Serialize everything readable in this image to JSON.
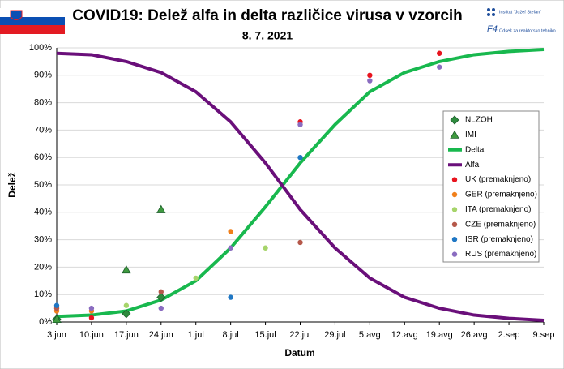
{
  "chart_data": {
    "type": "scatter",
    "title": "COVID19: Delež alfa in delta različice virusa v vzorcih",
    "subtitle": "8. 7. 2021",
    "annotations": [
      "Institut \"Jožef Stefan\"",
      "Odsek za reaktorsko tehniko"
    ],
    "x_label": "Datum",
    "y_label": "Delež",
    "xlim": [
      154,
      252
    ],
    "xticks": [
      {
        "value": 154,
        "label": "3.jun"
      },
      {
        "value": 161,
        "label": "10.jun"
      },
      {
        "value": 168,
        "label": "17.jun"
      },
      {
        "value": 175,
        "label": "24.jun"
      },
      {
        "value": 182,
        "label": "1.jul"
      },
      {
        "value": 189,
        "label": "8.jul"
      },
      {
        "value": 196,
        "label": "15.jul"
      },
      {
        "value": 203,
        "label": "22.jul"
      },
      {
        "value": 210,
        "label": "29.jul"
      },
      {
        "value": 217,
        "label": "5.avg"
      },
      {
        "value": 224,
        "label": "12.avg"
      },
      {
        "value": 231,
        "label": "19.avg"
      },
      {
        "value": 238,
        "label": "26.avg"
      },
      {
        "value": 245,
        "label": "2.sep"
      },
      {
        "value": 252,
        "label": "9.sep"
      }
    ],
    "ylim": [
      0,
      100
    ],
    "yticks": [
      {
        "value": 0,
        "label": "0%"
      },
      {
        "value": 10,
        "label": "10%"
      },
      {
        "value": 20,
        "label": "20%"
      },
      {
        "value": 30,
        "label": "30%"
      },
      {
        "value": 40,
        "label": "40%"
      },
      {
        "value": 50,
        "label": "50%"
      },
      {
        "value": 60,
        "label": "60%"
      },
      {
        "value": 70,
        "label": "70%"
      },
      {
        "value": 80,
        "label": "80%"
      },
      {
        "value": 90,
        "label": "90%"
      },
      {
        "value": 100,
        "label": "100%"
      }
    ],
    "grid": true,
    "series": [
      {
        "name": "NLZOH",
        "color": "#2e8b3e",
        "marker": "diamond",
        "x": [
          154,
          168,
          175
        ],
        "values": [
          1,
          3,
          9
        ]
      },
      {
        "name": "IMI",
        "color": "#3f9a3f",
        "marker": "triangle",
        "x": [
          154,
          168,
          175
        ],
        "values": [
          1,
          19,
          41
        ]
      },
      {
        "name": "Delta",
        "color": "#18b84e",
        "marker": "line",
        "x": [
          154,
          161,
          168,
          175,
          182,
          189,
          196,
          203,
          210,
          217,
          224,
          231,
          238,
          245,
          252
        ],
        "values": [
          2,
          2.5,
          4,
          8,
          15,
          27,
          42,
          58,
          72,
          84,
          91,
          95,
          97.5,
          98.7,
          99.4
        ]
      },
      {
        "name": "Alfa",
        "color": "#6a0f7a",
        "marker": "line",
        "x": [
          154,
          161,
          168,
          175,
          182,
          189,
          196,
          203,
          210,
          217,
          224,
          231,
          238,
          245,
          252
        ],
        "values": [
          98,
          97.5,
          95,
          91,
          84,
          73,
          58,
          41,
          27,
          16,
          9,
          5,
          2.5,
          1.3,
          0.6
        ]
      },
      {
        "name": "UK (premaknjeno)",
        "color": "#e8141e",
        "marker": "circle",
        "x": [
          161,
          203,
          217,
          231
        ],
        "values": [
          1.5,
          73,
          90,
          98
        ]
      },
      {
        "name": "GER (premaknjeno)",
        "color": "#f07f1a",
        "marker": "circle",
        "x": [
          154,
          161,
          189
        ],
        "values": [
          4,
          4,
          33
        ]
      },
      {
        "name": "ITA (premaknjeno)",
        "color": "#a6d46a",
        "marker": "circle",
        "x": [
          168,
          182,
          196
        ],
        "values": [
          6,
          16,
          27
        ]
      },
      {
        "name": "CZE (premaknjeno)",
        "color": "#b5584a",
        "marker": "circle",
        "x": [
          154,
          175,
          203
        ],
        "values": [
          5,
          11,
          29
        ]
      },
      {
        "name": "ISR (premaknjeno)",
        "color": "#1f77c4",
        "marker": "circle",
        "x": [
          154,
          189,
          203
        ],
        "values": [
          6,
          9,
          60
        ]
      },
      {
        "name": "RUS (premaknjeno)",
        "color": "#8a6cc0",
        "marker": "circle",
        "x": [
          161,
          175,
          189,
          203,
          217,
          231
        ],
        "values": [
          5,
          5,
          27,
          72,
          88,
          93
        ]
      }
    ]
  }
}
